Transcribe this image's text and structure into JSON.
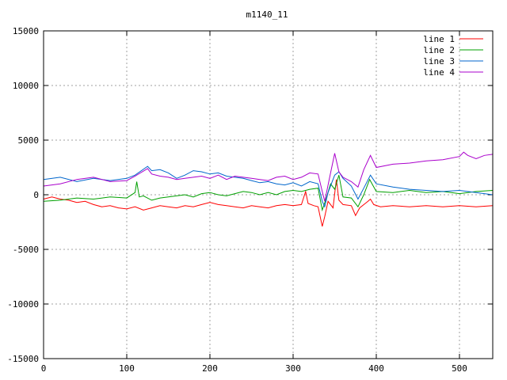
{
  "chart_data": {
    "type": "line",
    "title": "m1140_11",
    "xlabel": "",
    "ylabel": "",
    "xlim": [
      0,
      540
    ],
    "ylim": [
      -15000,
      15000
    ],
    "x_ticks": [
      0,
      100,
      200,
      300,
      400,
      500
    ],
    "y_ticks": [
      -15000,
      -10000,
      -5000,
      0,
      5000,
      10000,
      15000
    ],
    "grid": true,
    "legend_position": "top-right",
    "series": [
      {
        "name": "line 1",
        "color": "#ff0000",
        "points": [
          [
            0,
            -400
          ],
          [
            10,
            -200
          ],
          [
            20,
            -400
          ],
          [
            30,
            -500
          ],
          [
            40,
            -700
          ],
          [
            50,
            -600
          ],
          [
            60,
            -900
          ],
          [
            70,
            -1100
          ],
          [
            80,
            -1000
          ],
          [
            90,
            -1200
          ],
          [
            100,
            -1300
          ],
          [
            110,
            -1100
          ],
          [
            120,
            -1400
          ],
          [
            130,
            -1200
          ],
          [
            140,
            -1000
          ],
          [
            150,
            -1100
          ],
          [
            160,
            -1200
          ],
          [
            170,
            -1000
          ],
          [
            180,
            -1100
          ],
          [
            190,
            -900
          ],
          [
            200,
            -700
          ],
          [
            210,
            -900
          ],
          [
            220,
            -1000
          ],
          [
            230,
            -1100
          ],
          [
            240,
            -1200
          ],
          [
            250,
            -1000
          ],
          [
            260,
            -1100
          ],
          [
            270,
            -1200
          ],
          [
            280,
            -1000
          ],
          [
            290,
            -900
          ],
          [
            300,
            -1000
          ],
          [
            310,
            -900
          ],
          [
            315,
            300
          ],
          [
            318,
            -800
          ],
          [
            325,
            -1000
          ],
          [
            330,
            -1100
          ],
          [
            335,
            -2900
          ],
          [
            338,
            -2000
          ],
          [
            342,
            -600
          ],
          [
            348,
            -1200
          ],
          [
            352,
            1400
          ],
          [
            355,
            -500
          ],
          [
            360,
            -900
          ],
          [
            370,
            -1000
          ],
          [
            375,
            -1900
          ],
          [
            380,
            -1200
          ],
          [
            390,
            -600
          ],
          [
            393,
            -400
          ],
          [
            397,
            -900
          ],
          [
            405,
            -1100
          ],
          [
            420,
            -1000
          ],
          [
            440,
            -1100
          ],
          [
            460,
            -1000
          ],
          [
            480,
            -1100
          ],
          [
            500,
            -1000
          ],
          [
            520,
            -1100
          ],
          [
            540,
            -1000
          ]
        ]
      },
      {
        "name": "line 2",
        "color": "#00a000",
        "points": [
          [
            0,
            -600
          ],
          [
            20,
            -500
          ],
          [
            40,
            -300
          ],
          [
            60,
            -400
          ],
          [
            80,
            -200
          ],
          [
            100,
            -300
          ],
          [
            110,
            200
          ],
          [
            112,
            1200
          ],
          [
            115,
            -200
          ],
          [
            120,
            -100
          ],
          [
            130,
            -500
          ],
          [
            140,
            -300
          ],
          [
            150,
            -200
          ],
          [
            160,
            -100
          ],
          [
            170,
            0
          ],
          [
            180,
            -200
          ],
          [
            190,
            100
          ],
          [
            200,
            200
          ],
          [
            210,
            0
          ],
          [
            220,
            -100
          ],
          [
            230,
            100
          ],
          [
            240,
            300
          ],
          [
            250,
            200
          ],
          [
            260,
            0
          ],
          [
            270,
            200
          ],
          [
            280,
            0
          ],
          [
            290,
            300
          ],
          [
            300,
            400
          ],
          [
            310,
            300
          ],
          [
            320,
            500
          ],
          [
            330,
            600
          ],
          [
            335,
            -1400
          ],
          [
            340,
            -300
          ],
          [
            345,
            1000
          ],
          [
            350,
            500
          ],
          [
            355,
            1800
          ],
          [
            360,
            -200
          ],
          [
            370,
            -300
          ],
          [
            378,
            -1100
          ],
          [
            385,
            0
          ],
          [
            392,
            1400
          ],
          [
            400,
            300
          ],
          [
            420,
            200
          ],
          [
            440,
            400
          ],
          [
            460,
            200
          ],
          [
            480,
            300
          ],
          [
            500,
            100
          ],
          [
            520,
            300
          ],
          [
            540,
            400
          ]
        ]
      },
      {
        "name": "line 3",
        "color": "#0066cc",
        "points": [
          [
            0,
            1400
          ],
          [
            20,
            1600
          ],
          [
            40,
            1200
          ],
          [
            60,
            1500
          ],
          [
            80,
            1300
          ],
          [
            100,
            1500
          ],
          [
            110,
            1800
          ],
          [
            125,
            2600
          ],
          [
            130,
            2200
          ],
          [
            140,
            2300
          ],
          [
            150,
            2000
          ],
          [
            160,
            1500
          ],
          [
            170,
            1800
          ],
          [
            180,
            2200
          ],
          [
            190,
            2100
          ],
          [
            200,
            1900
          ],
          [
            210,
            2000
          ],
          [
            220,
            1700
          ],
          [
            230,
            1600
          ],
          [
            240,
            1500
          ],
          [
            250,
            1300
          ],
          [
            260,
            1100
          ],
          [
            270,
            1200
          ],
          [
            280,
            1000
          ],
          [
            290,
            900
          ],
          [
            300,
            1100
          ],
          [
            310,
            800
          ],
          [
            320,
            1200
          ],
          [
            330,
            1000
          ],
          [
            335,
            -600
          ],
          [
            338,
            -1100
          ],
          [
            342,
            200
          ],
          [
            350,
            1800
          ],
          [
            355,
            2100
          ],
          [
            360,
            1500
          ],
          [
            370,
            800
          ],
          [
            378,
            -400
          ],
          [
            385,
            600
          ],
          [
            393,
            1800
          ],
          [
            400,
            1000
          ],
          [
            420,
            700
          ],
          [
            440,
            500
          ],
          [
            460,
            400
          ],
          [
            480,
            300
          ],
          [
            500,
            400
          ],
          [
            520,
            200
          ],
          [
            540,
            0
          ]
        ]
      },
      {
        "name": "line 4",
        "color": "#aa00cc",
        "points": [
          [
            0,
            800
          ],
          [
            20,
            1000
          ],
          [
            40,
            1400
          ],
          [
            60,
            1600
          ],
          [
            80,
            1200
          ],
          [
            100,
            1300
          ],
          [
            110,
            1700
          ],
          [
            125,
            2400
          ],
          [
            130,
            1900
          ],
          [
            140,
            1700
          ],
          [
            150,
            1600
          ],
          [
            160,
            1400
          ],
          [
            170,
            1500
          ],
          [
            180,
            1600
          ],
          [
            190,
            1700
          ],
          [
            200,
            1500
          ],
          [
            210,
            1800
          ],
          [
            220,
            1400
          ],
          [
            230,
            1700
          ],
          [
            240,
            1600
          ],
          [
            250,
            1500
          ],
          [
            260,
            1400
          ],
          [
            270,
            1300
          ],
          [
            280,
            1600
          ],
          [
            290,
            1700
          ],
          [
            300,
            1400
          ],
          [
            310,
            1600
          ],
          [
            320,
            2000
          ],
          [
            330,
            1900
          ],
          [
            335,
            300
          ],
          [
            338,
            -600
          ],
          [
            345,
            2000
          ],
          [
            350,
            3800
          ],
          [
            355,
            2100
          ],
          [
            360,
            1600
          ],
          [
            370,
            1200
          ],
          [
            378,
            700
          ],
          [
            385,
            2300
          ],
          [
            393,
            3600
          ],
          [
            400,
            2500
          ],
          [
            420,
            2800
          ],
          [
            440,
            2900
          ],
          [
            460,
            3100
          ],
          [
            480,
            3200
          ],
          [
            500,
            3500
          ],
          [
            505,
            3900
          ],
          [
            510,
            3600
          ],
          [
            520,
            3300
          ],
          [
            530,
            3600
          ],
          [
            540,
            3700
          ]
        ]
      }
    ]
  }
}
